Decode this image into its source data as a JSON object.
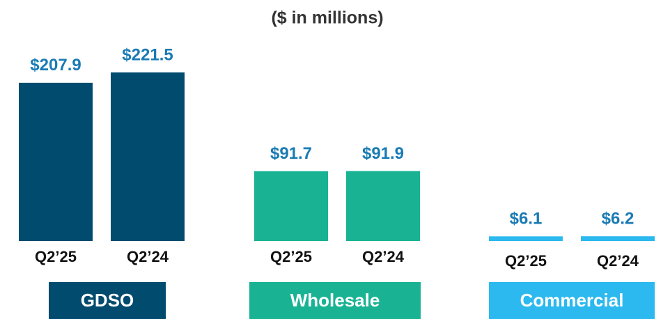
{
  "chart_data": {
    "type": "bar",
    "title": "($ in millions)",
    "groups": [
      {
        "name": "GDSO",
        "color": "#004b6e",
        "categories": [
          "Q2’25",
          "Q2’24"
        ],
        "values": [
          207.9,
          221.5
        ],
        "value_labels": [
          "$207.9",
          "$221.5"
        ]
      },
      {
        "name": "Wholesale",
        "color": "#19b394",
        "categories": [
          "Q2’25",
          "Q2’24"
        ],
        "values": [
          91.7,
          91.9
        ],
        "value_labels": [
          "$91.7",
          "$91.9"
        ]
      },
      {
        "name": "Commercial",
        "color": "#2bb9ef",
        "categories": [
          "Q2’25",
          "Q2’24"
        ],
        "values": [
          6.1,
          6.2
        ],
        "value_labels": [
          "$6.1",
          "$6.2"
        ]
      }
    ]
  }
}
